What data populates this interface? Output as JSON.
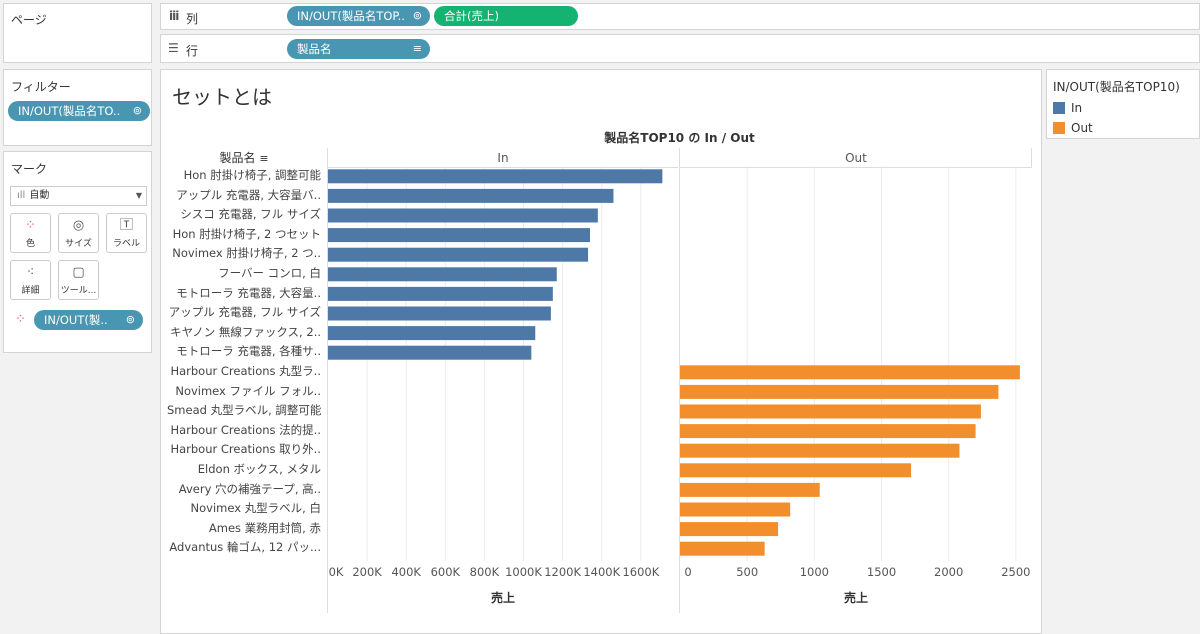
{
  "shelves": {
    "pages_label": "ページ",
    "columns_label": "列",
    "rows_label": "行",
    "columns_pills": [
      "IN/OUT(製品名TOP..",
      "合計(売上)"
    ],
    "rows_pill": "製品名"
  },
  "filters": {
    "title": "フィルター",
    "pill": "IN/OUT(製品名TO.."
  },
  "marks": {
    "title": "マーク",
    "mark_type": "自動",
    "buttons": {
      "color": "色",
      "size": "サイズ",
      "label": "ラベル",
      "detail": "詳細",
      "tooltip": "ツール..."
    },
    "color_pill": "IN/OUT(製.."
  },
  "view": {
    "sheet_title": "セットとは",
    "chart_title": "製品名TOP10 の In / Out",
    "row_header": "製品名",
    "pane_in": "In",
    "pane_out": "Out",
    "xlabel_in": "売上",
    "xlabel_out": "売上"
  },
  "legend": {
    "title": "IN/OUT(製品名TOP10)",
    "items": [
      {
        "label": "In",
        "color": "#4e79a7"
      },
      {
        "label": "Out",
        "color": "#f28e2b"
      }
    ]
  },
  "chart_data": {
    "type": "bar",
    "title": "製品名TOP10 の In / Out",
    "panes": [
      {
        "name": "In",
        "xlabel": "売上",
        "xlim": [
          0,
          1790000
        ],
        "ticks": [
          0,
          200000,
          400000,
          600000,
          800000,
          1000000,
          1200000,
          1400000,
          1600000
        ],
        "tick_labels": [
          "0K",
          "200K",
          "400K",
          "600K",
          "800K",
          "1000K",
          "1200K",
          "1400K",
          "1600K"
        ],
        "color": "#4e79a7",
        "categories": [
          "Hon 肘掛け椅子, 調整可能",
          "アップル 充電器, 大容量バ..",
          "シスコ 充電器, フル サイズ",
          "Hon 肘掛け椅子, 2 つセット",
          "Novimex 肘掛け椅子, 2 つ..",
          "フーバー コンロ, 白",
          "モトローラ 充電器, 大容量..",
          "アップル 充電器, フル サイズ",
          "キヤノン 無線ファックス, 2..",
          "モトローラ 充電器, 各種サ.."
        ],
        "values": [
          1710000,
          1460000,
          1380000,
          1340000,
          1330000,
          1170000,
          1150000,
          1140000,
          1060000,
          1040000
        ]
      },
      {
        "name": "Out",
        "xlabel": "売上",
        "xlim": [
          0,
          2620
        ],
        "ticks": [
          0,
          500,
          1000,
          1500,
          2000,
          2500
        ],
        "tick_labels": [
          "0",
          "500",
          "1000",
          "1500",
          "2000",
          "2500"
        ],
        "color": "#f28e2b",
        "categories": [
          "Harbour Creations 丸型ラ..",
          "Novimex ファイル フォル..",
          "Smead 丸型ラベル, 調整可能",
          "Harbour Creations 法的提..",
          "Harbour Creations 取り外..",
          "Eldon ボックス, メタル",
          "Avery 穴の補強テープ, 高..",
          "Novimex 丸型ラベル, 白",
          "Ames 業務用封筒, 赤",
          "Advantus 輪ゴム, 12 パッ..."
        ],
        "values": [
          2530,
          2370,
          2240,
          2200,
          2080,
          1720,
          1040,
          820,
          730,
          630
        ]
      }
    ]
  }
}
